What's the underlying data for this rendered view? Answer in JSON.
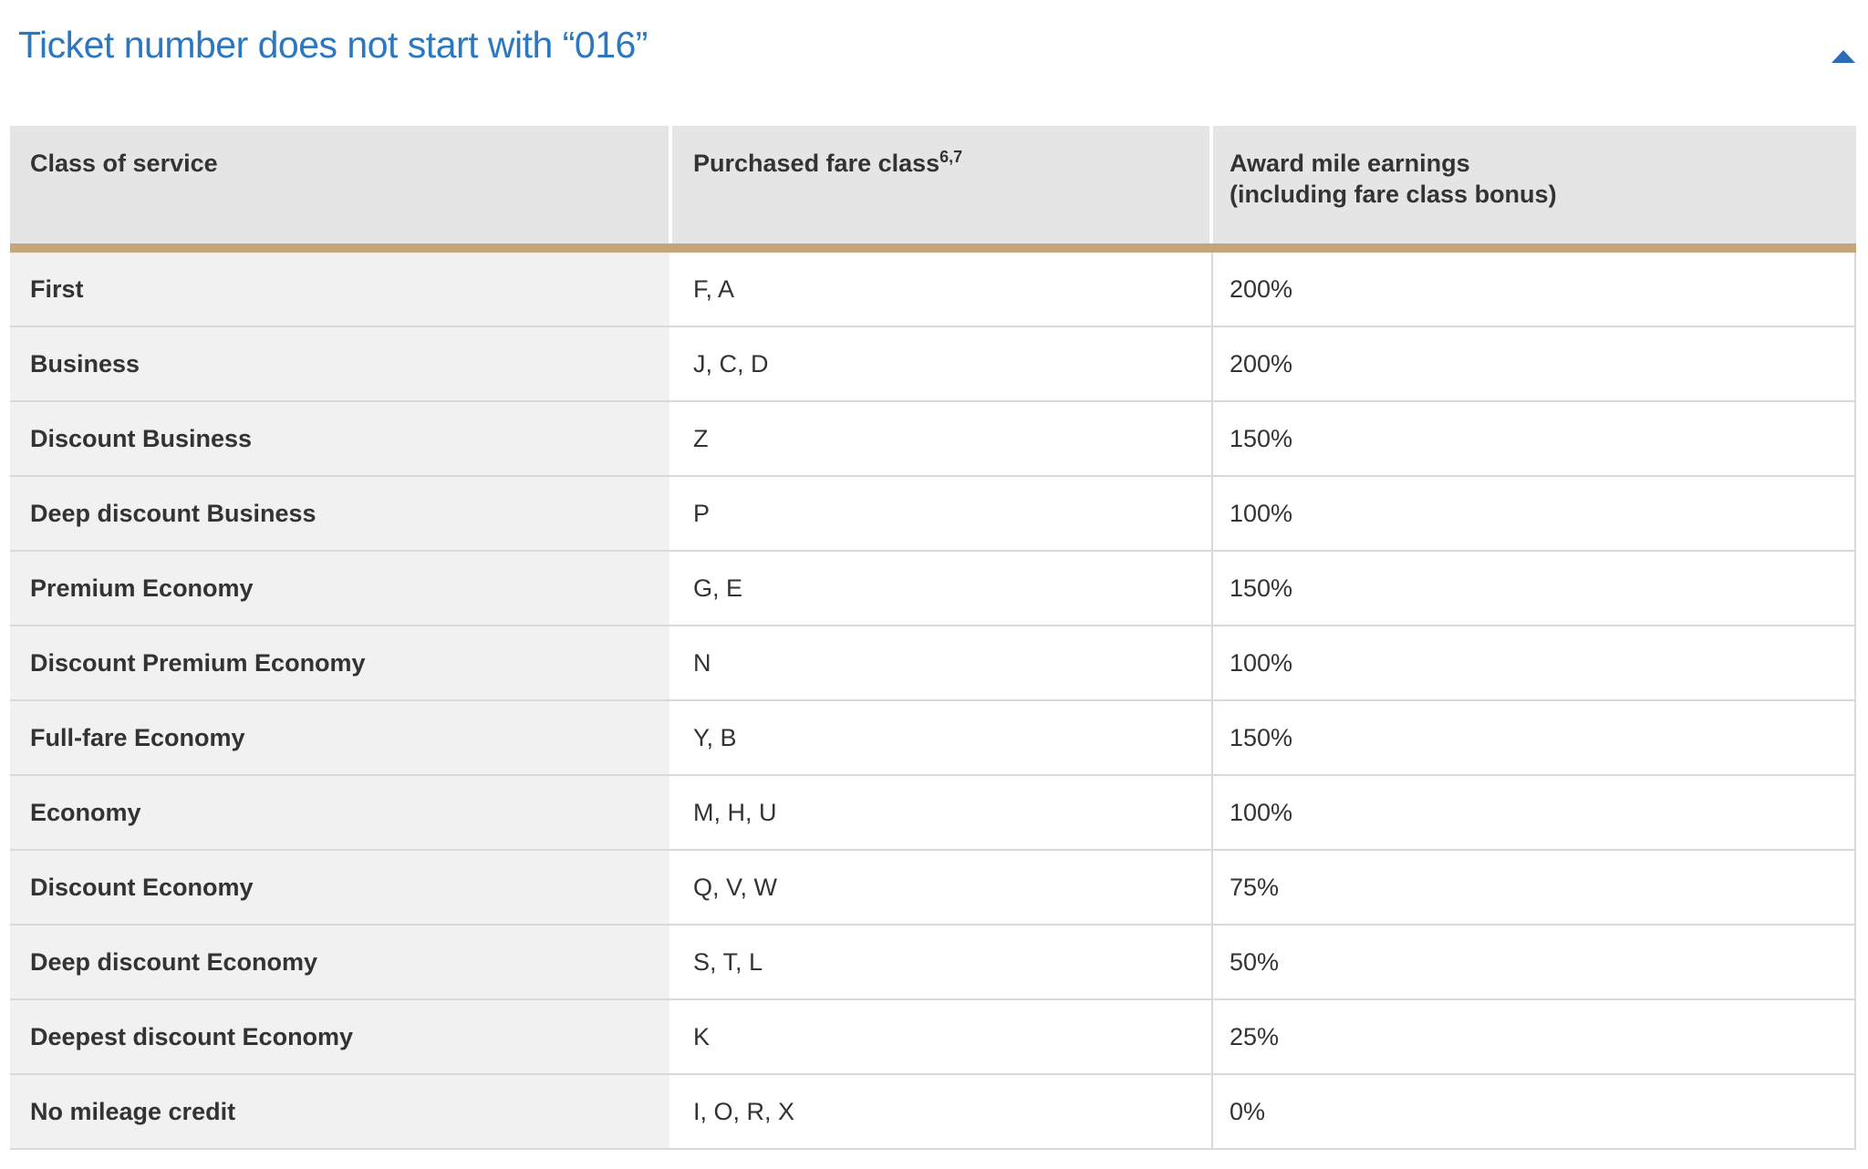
{
  "colors": {
    "title_blue": "#2b77c2",
    "accent_tan": "#c4a57c",
    "header_bg": "#e5e5e5",
    "row_label_bg": "#f1f1f1",
    "border_gray": "#d9d9d9",
    "text_color": "#333333"
  },
  "section": {
    "title": "Ticket number does not start with “016”",
    "collapse_icon": "chevron-up-icon"
  },
  "table": {
    "headers": [
      {
        "label": "Class of service"
      },
      {
        "label": "Purchased fare class",
        "superscript": "6,7"
      },
      {
        "label": "Award mile earnings",
        "label_line2": "(including fare class bonus)"
      }
    ],
    "rows": [
      {
        "class_of_service": "First",
        "fare_class": "F, A",
        "earnings": "200%"
      },
      {
        "class_of_service": "Business",
        "fare_class": "J, C, D",
        "earnings": "200%"
      },
      {
        "class_of_service": "Discount Business",
        "fare_class": "Z",
        "earnings": "150%"
      },
      {
        "class_of_service": "Deep discount Business",
        "fare_class": "P",
        "earnings": "100%"
      },
      {
        "class_of_service": "Premium Economy",
        "fare_class": "G, E",
        "earnings": "150%"
      },
      {
        "class_of_service": "Discount Premium Economy",
        "fare_class": "N",
        "earnings": "100%"
      },
      {
        "class_of_service": "Full-fare Economy",
        "fare_class": "Y, B",
        "earnings": "150%"
      },
      {
        "class_of_service": "Economy",
        "fare_class": "M, H, U",
        "earnings": "100%"
      },
      {
        "class_of_service": "Discount Economy",
        "fare_class": "Q, V, W",
        "earnings": "75%"
      },
      {
        "class_of_service": "Deep discount Economy",
        "fare_class": "S, T, L",
        "earnings": "50%"
      },
      {
        "class_of_service": "Deepest discount Economy",
        "fare_class": "K",
        "earnings": "25%"
      },
      {
        "class_of_service": "No mileage credit",
        "fare_class": "I, O, R, X",
        "earnings": "0%"
      }
    ]
  }
}
